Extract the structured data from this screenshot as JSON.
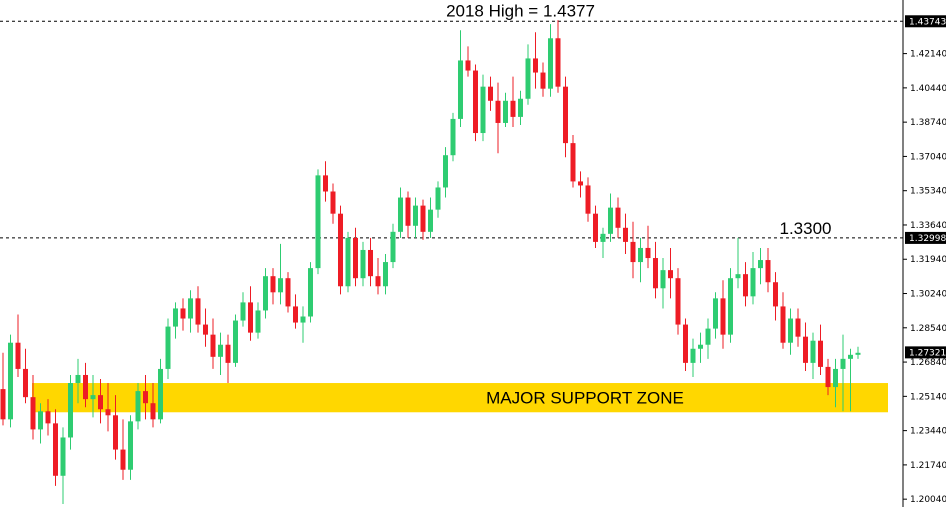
{
  "chart_data": {
    "type": "candlestick",
    "ylim": [
      1.1985,
      1.446
    ],
    "y_ticks": [
      "1.42140",
      "1.40440",
      "1.38740",
      "1.37040",
      "1.35340",
      "1.33640",
      "1.31940",
      "1.30240",
      "1.28540",
      "1.26840",
      "1.25140",
      "1.23440",
      "1.21740",
      "1.20040"
    ],
    "grid": false,
    "colors": {
      "up": "#2ecc71",
      "down": "#ee1c25",
      "zone": "#ffd700",
      "badge": "#000000",
      "line": "#000000"
    },
    "price_lines": [
      {
        "value": 1.43743,
        "label": "1.43743",
        "style": "dashed"
      },
      {
        "value": 1.32998,
        "label": "1.32998",
        "style": "dashed"
      },
      {
        "value": 1.27321,
        "label": "1.27321",
        "style": "badge-only"
      }
    ],
    "annotations": [
      {
        "text": "2018 High = 1.4377",
        "x_index": 69,
        "value": 1.4377
      },
      {
        "text": "1.3300",
        "x_index": 107,
        "value": 1.33
      }
    ],
    "zone": {
      "label": "MAJOR SUPPORT ZONE",
      "from": 1.2435,
      "to": 1.258
    },
    "candles": [
      [
        1.255,
        1.273,
        1.237,
        1.24
      ],
      [
        1.24,
        1.282,
        1.236,
        1.278
      ],
      [
        1.278,
        1.292,
        1.261,
        1.265
      ],
      [
        1.265,
        1.275,
        1.248,
        1.251
      ],
      [
        1.251,
        1.262,
        1.23,
        1.235
      ],
      [
        1.235,
        1.248,
        1.228,
        1.244
      ],
      [
        1.244,
        1.25,
        1.232,
        1.238
      ],
      [
        1.238,
        1.245,
        1.207,
        1.212
      ],
      [
        1.212,
        1.236,
        1.198,
        1.231
      ],
      [
        1.231,
        1.262,
        1.225,
        1.258
      ],
      [
        1.258,
        1.27,
        1.248,
        1.262
      ],
      [
        1.262,
        1.268,
        1.246,
        1.25
      ],
      [
        1.25,
        1.262,
        1.241,
        1.252
      ],
      [
        1.252,
        1.26,
        1.238,
        1.245
      ],
      [
        1.245,
        1.258,
        1.234,
        1.242
      ],
      [
        1.242,
        1.252,
        1.22,
        1.225
      ],
      [
        1.225,
        1.24,
        1.21,
        1.215
      ],
      [
        1.215,
        1.242,
        1.21,
        1.239
      ],
      [
        1.239,
        1.258,
        1.235,
        1.254
      ],
      [
        1.254,
        1.262,
        1.24,
        1.248
      ],
      [
        1.248,
        1.258,
        1.236,
        1.24
      ],
      [
        1.24,
        1.27,
        1.238,
        1.265
      ],
      [
        1.265,
        1.29,
        1.26,
        1.286
      ],
      [
        1.286,
        1.298,
        1.28,
        1.295
      ],
      [
        1.295,
        1.3,
        1.284,
        1.29
      ],
      [
        1.29,
        1.304,
        1.283,
        1.3
      ],
      [
        1.3,
        1.306,
        1.283,
        1.287
      ],
      [
        1.287,
        1.295,
        1.276,
        1.282
      ],
      [
        1.282,
        1.29,
        1.265,
        1.271
      ],
      [
        1.271,
        1.283,
        1.262,
        1.277
      ],
      [
        1.277,
        1.282,
        1.258,
        1.268
      ],
      [
        1.268,
        1.292,
        1.266,
        1.289
      ],
      [
        1.289,
        1.303,
        1.286,
        1.298
      ],
      [
        1.298,
        1.306,
        1.279,
        1.283
      ],
      [
        1.283,
        1.298,
        1.28,
        1.294
      ],
      [
        1.294,
        1.315,
        1.29,
        1.311
      ],
      [
        1.311,
        1.315,
        1.297,
        1.303
      ],
      [
        1.303,
        1.327,
        1.297,
        1.31
      ],
      [
        1.31,
        1.313,
        1.293,
        1.296
      ],
      [
        1.296,
        1.302,
        1.285,
        1.288
      ],
      [
        1.288,
        1.296,
        1.278,
        1.291
      ],
      [
        1.291,
        1.318,
        1.288,
        1.315
      ],
      [
        1.315,
        1.364,
        1.312,
        1.361
      ],
      [
        1.361,
        1.368,
        1.348,
        1.353
      ],
      [
        1.353,
        1.357,
        1.337,
        1.342
      ],
      [
        1.342,
        1.346,
        1.302,
        1.306
      ],
      [
        1.306,
        1.333,
        1.303,
        1.33
      ],
      [
        1.33,
        1.335,
        1.306,
        1.31
      ],
      [
        1.31,
        1.328,
        1.306,
        1.324
      ],
      [
        1.324,
        1.33,
        1.306,
        1.311
      ],
      [
        1.311,
        1.32,
        1.302,
        1.306
      ],
      [
        1.306,
        1.322,
        1.302,
        1.318
      ],
      [
        1.318,
        1.337,
        1.315,
        1.333
      ],
      [
        1.333,
        1.355,
        1.33,
        1.35
      ],
      [
        1.35,
        1.353,
        1.33,
        1.336
      ],
      [
        1.336,
        1.35,
        1.33,
        1.346
      ],
      [
        1.346,
        1.349,
        1.329,
        1.333
      ],
      [
        1.333,
        1.35,
        1.33,
        1.344
      ],
      [
        1.344,
        1.358,
        1.34,
        1.355
      ],
      [
        1.355,
        1.375,
        1.35,
        1.371
      ],
      [
        1.371,
        1.392,
        1.368,
        1.389
      ],
      [
        1.389,
        1.433,
        1.385,
        1.418
      ],
      [
        1.418,
        1.425,
        1.41,
        1.413
      ],
      [
        1.413,
        1.416,
        1.378,
        1.382
      ],
      [
        1.382,
        1.411,
        1.378,
        1.405
      ],
      [
        1.405,
        1.41,
        1.393,
        1.398
      ],
      [
        1.398,
        1.407,
        1.372,
        1.387
      ],
      [
        1.387,
        1.402,
        1.385,
        1.398
      ],
      [
        1.398,
        1.41,
        1.385,
        1.39
      ],
      [
        1.39,
        1.403,
        1.386,
        1.399
      ],
      [
        1.399,
        1.426,
        1.396,
        1.419
      ],
      [
        1.419,
        1.432,
        1.404,
        1.412
      ],
      [
        1.412,
        1.417,
        1.4,
        1.404
      ],
      [
        1.404,
        1.436,
        1.4,
        1.429
      ],
      [
        1.429,
        1.438,
        1.402,
        1.405
      ],
      [
        1.405,
        1.41,
        1.37,
        1.377
      ],
      [
        1.377,
        1.381,
        1.355,
        1.358
      ],
      [
        1.358,
        1.363,
        1.35,
        1.356
      ],
      [
        1.356,
        1.36,
        1.338,
        1.342
      ],
      [
        1.342,
        1.346,
        1.325,
        1.328
      ],
      [
        1.328,
        1.335,
        1.32,
        1.332
      ],
      [
        1.332,
        1.352,
        1.328,
        1.345
      ],
      [
        1.345,
        1.35,
        1.33,
        1.335
      ],
      [
        1.335,
        1.342,
        1.322,
        1.328
      ],
      [
        1.328,
        1.338,
        1.31,
        1.318
      ],
      [
        1.318,
        1.33,
        1.308,
        1.325
      ],
      [
        1.325,
        1.336,
        1.315,
        1.32
      ],
      [
        1.32,
        1.328,
        1.3,
        1.305
      ],
      [
        1.305,
        1.32,
        1.295,
        1.314
      ],
      [
        1.314,
        1.325,
        1.3,
        1.31
      ],
      [
        1.31,
        1.315,
        1.282,
        1.287
      ],
      [
        1.287,
        1.29,
        1.264,
        1.268
      ],
      [
        1.268,
        1.28,
        1.261,
        1.275
      ],
      [
        1.275,
        1.283,
        1.268,
        1.277
      ],
      [
        1.277,
        1.29,
        1.27,
        1.285
      ],
      [
        1.285,
        1.303,
        1.28,
        1.3
      ],
      [
        1.3,
        1.309,
        1.275,
        1.282
      ],
      [
        1.282,
        1.315,
        1.278,
        1.31
      ],
      [
        1.31,
        1.33,
        1.305,
        1.312
      ],
      [
        1.312,
        1.318,
        1.296,
        1.301
      ],
      [
        1.301,
        1.323,
        1.297,
        1.315
      ],
      [
        1.315,
        1.325,
        1.307,
        1.319
      ],
      [
        1.319,
        1.325,
        1.303,
        1.308
      ],
      [
        1.308,
        1.313,
        1.289,
        1.296
      ],
      [
        1.296,
        1.303,
        1.275,
        1.278
      ],
      [
        1.278,
        1.295,
        1.272,
        1.29
      ],
      [
        1.29,
        1.295,
        1.276,
        1.281
      ],
      [
        1.281,
        1.288,
        1.264,
        1.268
      ],
      [
        1.268,
        1.283,
        1.26,
        1.279
      ],
      [
        1.279,
        1.287,
        1.262,
        1.266
      ],
      [
        1.266,
        1.27,
        1.252,
        1.256
      ],
      [
        1.256,
        1.27,
        1.246,
        1.265
      ],
      [
        1.265,
        1.282,
        1.244,
        1.27
      ],
      [
        1.27,
        1.275,
        1.244,
        1.272
      ],
      [
        1.272,
        1.276,
        1.27,
        1.273
      ]
    ]
  }
}
